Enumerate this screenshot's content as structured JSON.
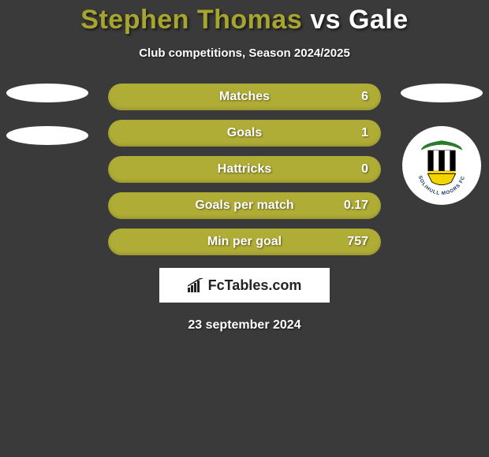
{
  "header": {
    "player1": "Stephen Thomas",
    "vs": "vs",
    "player2": "Gale",
    "subtitle": "Club competitions, Season 2024/2025"
  },
  "colors": {
    "background": "#3a3a3a",
    "bar_fill": "#b0ad36",
    "player1_title": "#a8a52f",
    "text": "#ffffff"
  },
  "bars": [
    {
      "label": "Matches",
      "value": "6"
    },
    {
      "label": "Goals",
      "value": "1"
    },
    {
      "label": "Hattricks",
      "value": "0"
    },
    {
      "label": "Goals per match",
      "value": "0.17"
    },
    {
      "label": "Min per goal",
      "value": "757"
    }
  ],
  "brand": {
    "text": "FcTables.com"
  },
  "date": "23 september 2024",
  "left_placeholders": 2,
  "crest": {
    "outer_text": "SOLIHULL MOORS FC",
    "stripes": [
      "#000000",
      "#ffffff",
      "#000000",
      "#ffffff",
      "#000000"
    ],
    "accent": "#f4d400",
    "green": "#2a7a2a"
  }
}
